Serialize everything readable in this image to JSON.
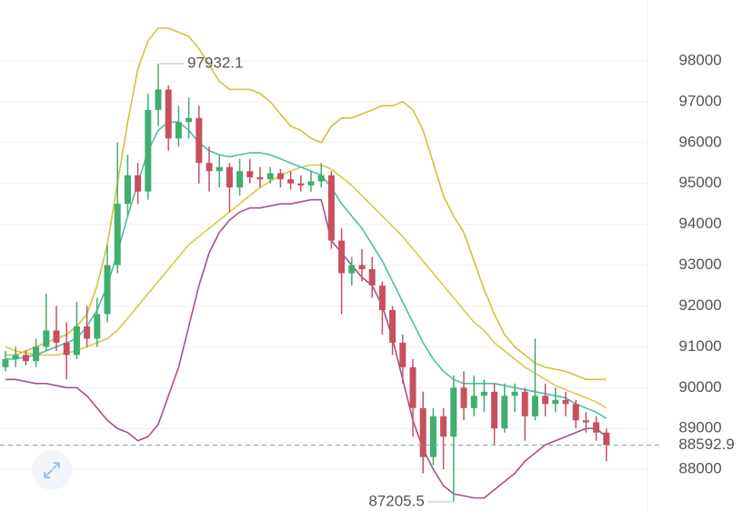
{
  "chart_data": {
    "type": "candlestick",
    "ylim": [
      86980,
      99490
    ],
    "yticks": [
      88000,
      89000,
      90000,
      91000,
      92000,
      93000,
      94000,
      95000,
      96000,
      97000,
      98000
    ],
    "grid": true,
    "up_color": "#3fae6e",
    "down_color": "#c8505e",
    "open": [
      90500,
      90700,
      90800,
      90650,
      91000,
      91400,
      91100,
      90800,
      91500,
      91200,
      91800,
      93000,
      94500,
      95200,
      94800,
      96800,
      97300,
      96100,
      96500,
      96600,
      95500,
      95300,
      95400,
      94900,
      95300,
      95150,
      95100,
      95250,
      95100,
      95000,
      94950,
      95050,
      95200,
      93600,
      92800,
      93000,
      92900,
      92500,
      91900,
      91100,
      90500,
      89500,
      88300,
      89300,
      88800,
      90000,
      89500,
      89800,
      89900,
      89000,
      89800,
      89900,
      89300,
      89800,
      89600,
      89700,
      89600,
      89200,
      89150,
      88900
    ],
    "high": [
      90900,
      91000,
      90900,
      91200,
      92300,
      92000,
      91600,
      92100,
      92000,
      92200,
      93500,
      96000,
      95700,
      95500,
      97200,
      97932.1,
      97400,
      96900,
      97100,
      96900,
      95900,
      95700,
      95500,
      95600,
      95600,
      95400,
      95400,
      95350,
      95300,
      95200,
      95300,
      95500,
      95300,
      93900,
      93200,
      93400,
      93200,
      92600,
      92000,
      91300,
      90700,
      89900,
      89500,
      89500,
      90300,
      90400,
      90300,
      90200,
      90100,
      90100,
      90100,
      90000,
      91200,
      90100,
      90000,
      89900,
      89700,
      89400,
      89300,
      89000
    ],
    "low": [
      90400,
      90500,
      90550,
      90500,
      90900,
      90900,
      90200,
      90700,
      91000,
      91000,
      91600,
      92800,
      94200,
      94500,
      94600,
      96400,
      95800,
      95900,
      96100,
      95000,
      94800,
      94900,
      94300,
      94700,
      95000,
      94900,
      95000,
      94900,
      94850,
      94800,
      94800,
      94900,
      93400,
      91800,
      92500,
      92600,
      92200,
      91300,
      90800,
      90100,
      88800,
      87900,
      88100,
      88000,
      87205.5,
      89200,
      89300,
      89400,
      88600,
      88900,
      89400,
      88700,
      89200,
      89300,
      89400,
      89300,
      89000,
      88900,
      88700,
      88200
    ],
    "close": [
      90700,
      90800,
      90650,
      91000,
      91400,
      91100,
      90800,
      91500,
      91200,
      91800,
      93000,
      94500,
      95200,
      94800,
      96800,
      97300,
      96100,
      96500,
      96600,
      95500,
      95300,
      95400,
      94900,
      95300,
      95150,
      95100,
      95250,
      95100,
      95000,
      94950,
      95050,
      95200,
      93600,
      92800,
      93000,
      92900,
      92500,
      91900,
      91100,
      90500,
      89500,
      88300,
      89300,
      88800,
      90000,
      89500,
      89800,
      89900,
      89000,
      89800,
      89900,
      89300,
      89800,
      89600,
      89700,
      89600,
      89200,
      89150,
      88900,
      88592.9
    ],
    "overlays": [
      {
        "color": "#d2c23a",
        "values": [
          90800,
          90800,
          90900,
          91000,
          91100,
          91200,
          91300,
          91500,
          91800,
          92500,
          93500,
          95000,
          96500,
          97800,
          98500,
          98800,
          98800,
          98700,
          98600,
          98300,
          97900,
          97500,
          97300,
          97300,
          97300,
          97200,
          97000,
          96700,
          96400,
          96300,
          96100,
          96000,
          96400,
          96600,
          96600,
          96700,
          96800,
          96900,
          96900,
          97000,
          96800,
          96300,
          95500,
          94700,
          94200,
          93800,
          93100,
          92400,
          91800,
          91300,
          91000,
          90800,
          90600,
          90500,
          90450,
          90400,
          90300,
          90200,
          90200,
          90200
        ]
      },
      {
        "color": "#a4528e",
        "values": [
          90200,
          90200,
          90150,
          90100,
          90100,
          90050,
          90000,
          90000,
          89800,
          89500,
          89200,
          89000,
          88900,
          88700,
          88800,
          89100,
          89800,
          90500,
          91500,
          92500,
          93300,
          93800,
          94100,
          94300,
          94400,
          94400,
          94450,
          94500,
          94500,
          94550,
          94600,
          94600,
          93600,
          93300,
          93000,
          92700,
          92500,
          92000,
          91200,
          90200,
          89200,
          88500,
          88000,
          87600,
          87400,
          87350,
          87300,
          87300,
          87500,
          87700,
          87900,
          88200,
          88400,
          88600,
          88700,
          88800,
          88900,
          89000,
          89000,
          88800
        ]
      },
      {
        "color": "#d8c94a",
        "values": [
          91000,
          90900,
          90850,
          90800,
          90800,
          90800,
          90850,
          90900,
          91000,
          91100,
          91200,
          91400,
          91700,
          92000,
          92300,
          92600,
          92900,
          93200,
          93500,
          93700,
          93900,
          94100,
          94300,
          94500,
          94700,
          94900,
          95050,
          95200,
          95300,
          95400,
          95450,
          95450,
          95350,
          95150,
          94950,
          94700,
          94450,
          94200,
          93950,
          93700,
          93400,
          93100,
          92800,
          92500,
          92200,
          91900,
          91600,
          91400,
          91100,
          90900,
          90700,
          90500,
          90350,
          90200,
          90050,
          89950,
          89850,
          89750,
          89650,
          89500
        ]
      },
      {
        "color": "#4cbfa6",
        "values": [
          90700,
          90700,
          90750,
          90800,
          90900,
          91000,
          91100,
          91200,
          91500,
          91900,
          92500,
          93300,
          94200,
          95000,
          95800,
          96300,
          96500,
          96500,
          96300,
          96000,
          95800,
          95700,
          95650,
          95700,
          95750,
          95750,
          95700,
          95600,
          95500,
          95400,
          95300,
          95200,
          94900,
          94500,
          94200,
          93900,
          93500,
          93100,
          92600,
          92100,
          91600,
          91100,
          90700,
          90400,
          90200,
          90100,
          90100,
          90100,
          90100,
          90050,
          90000,
          89950,
          89900,
          89850,
          89800,
          89750,
          89600,
          89500,
          89400,
          89250
        ]
      }
    ]
  }
}
